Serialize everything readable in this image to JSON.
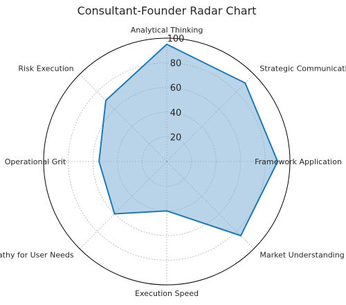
{
  "chart_data": {
    "type": "radar",
    "title": "Consultant-Founder Radar Chart",
    "categories": [
      "Analytical Thinking",
      "Strategic Communication",
      "Framework Application",
      "Market Understanding",
      "Execution Speed",
      "Empathy for User Needs",
      "Operational Grit",
      "Risk Execution"
    ],
    "series": [
      {
        "values": [
          95,
          90,
          90,
          85,
          40,
          60,
          55,
          70
        ]
      }
    ],
    "rlim": [
      0,
      100
    ],
    "r_ticks": [
      20,
      40,
      60,
      80,
      100
    ],
    "grid": true,
    "colors": {
      "line": "#1f77b4",
      "fill": "#7fb1d6",
      "grid": "#b0b0b0",
      "frame": "#000000"
    }
  }
}
